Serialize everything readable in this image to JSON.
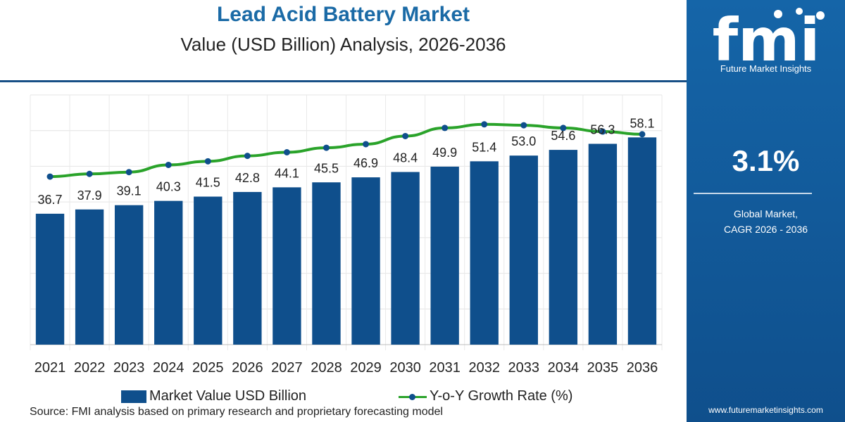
{
  "header": {
    "title": "Lead Acid Battery Market",
    "subtitle": "Value (USD Billion) Analysis, 2026-2036"
  },
  "colors": {
    "bar": "#0f4f8c",
    "line": "#2aa32a",
    "marker": "#0f4f8c",
    "panel": "#1565a8",
    "title": "#1a6aa6"
  },
  "legend": {
    "bar_label": "Market Value USD Billion",
    "line_label": "Y-o-Y Growth Rate (%)"
  },
  "source": "Source: FMI analysis based on primary research and proprietary forecasting model",
  "side_panel": {
    "logo_text": "fmi",
    "logo_caption": "Future Market Insights",
    "cagr_value": "3.1%",
    "cagr_label_line1": "Global Market,",
    "cagr_label_line2": "CAGR 2026 - 2036",
    "website": "www.futuremarketinsights.com"
  },
  "chart_data": {
    "type": "bar",
    "categories": [
      "2021",
      "2022",
      "2023",
      "2024",
      "2025",
      "2026",
      "2027",
      "2028",
      "2029",
      "2030",
      "2031",
      "2032",
      "2033",
      "2034",
      "2035",
      "2036"
    ],
    "series": [
      {
        "name": "Market Value USD Billion",
        "type": "bar",
        "values": [
          36.7,
          37.9,
          39.1,
          40.3,
          41.5,
          42.8,
          44.1,
          45.5,
          46.9,
          48.4,
          49.9,
          51.4,
          53.0,
          54.6,
          56.3,
          58.1
        ],
        "labels": [
          "36.7",
          "37.9",
          "39.1",
          "40.3",
          "41.5",
          "42.8",
          "44.1",
          "45.5",
          "46.9",
          "48.4",
          "49.9",
          "51.4",
          "53.0",
          "54.6",
          "56.3",
          "58.1"
        ]
      },
      {
        "name": "Y-o-Y Growth Rate (%)",
        "type": "line",
        "values": [
          2.85,
          2.88,
          2.9,
          2.98,
          3.02,
          3.08,
          3.12,
          3.17,
          3.21,
          3.3,
          3.39,
          3.43,
          3.42,
          3.39,
          3.35,
          3.32
        ]
      }
    ],
    "ylim": [
      0,
      70
    ],
    "grid": true,
    "legend_position": "bottom"
  }
}
